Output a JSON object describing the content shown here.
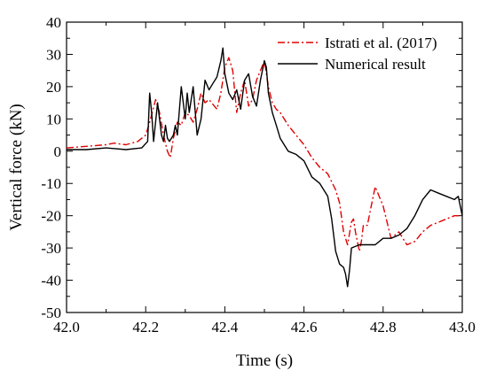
{
  "chart_data": {
    "type": "line",
    "xlabel": "Time (s)",
    "ylabel": "Vertical force (kN)",
    "xlim": [
      42.0,
      43.0
    ],
    "ylim": [
      -50,
      40
    ],
    "xticks": [
      42.0,
      42.2,
      42.4,
      42.6,
      42.8,
      43.0
    ],
    "xtick_labels": [
      "42.0",
      "42.2",
      "42.4",
      "42.6",
      "42.8",
      "43.0"
    ],
    "yticks": [
      -50,
      -40,
      -30,
      -20,
      -10,
      0,
      10,
      20,
      30,
      40
    ],
    "ytick_labels": [
      "-50",
      "-40",
      "-30",
      "-20",
      "-10",
      "0",
      "10",
      "20",
      "30",
      "40"
    ],
    "grid": false,
    "legend_position": "top-right",
    "series": [
      {
        "name": "Istrati et al. (2017)",
        "color": "#e00000",
        "style": "dash-dot",
        "x": [
          42.0,
          42.05,
          42.1,
          42.12,
          42.15,
          42.18,
          42.2,
          42.21,
          42.225,
          42.235,
          42.245,
          42.255,
          42.262,
          42.27,
          42.28,
          42.29,
          42.3,
          42.31,
          42.32,
          42.33,
          42.34,
          42.35,
          42.36,
          42.38,
          42.39,
          42.4,
          42.41,
          42.42,
          42.43,
          42.44,
          42.45,
          42.46,
          42.47,
          42.48,
          42.49,
          42.5,
          42.51,
          42.52,
          42.53,
          42.54,
          42.56,
          42.58,
          42.6,
          42.62,
          42.64,
          42.66,
          42.68,
          42.69,
          42.7,
          42.71,
          42.72,
          42.725,
          42.73,
          42.74,
          42.745,
          42.75,
          42.76,
          42.77,
          42.78,
          42.79,
          42.8,
          42.82,
          42.84,
          42.86,
          42.88,
          42.9,
          42.92,
          42.94,
          42.96,
          42.98,
          43.0
        ],
        "y": [
          1,
          1.5,
          2,
          2.5,
          2,
          3,
          5,
          9,
          16,
          12,
          5,
          0,
          -2,
          4,
          9,
          8,
          12,
          11,
          9,
          13,
          18,
          15,
          16,
          13,
          18,
          26,
          29,
          25,
          12,
          18,
          22,
          14,
          16,
          22,
          25,
          28,
          20,
          15,
          13,
          12,
          8,
          5,
          2,
          -2,
          -5,
          -7,
          -12,
          -16,
          -25,
          -29,
          -22,
          -21,
          -25,
          -31,
          -28,
          -23,
          -23,
          -17,
          -11,
          -14,
          -17,
          -27,
          -25,
          -29,
          -28,
          -25,
          -23,
          -22,
          -21,
          -20,
          -20
        ]
      },
      {
        "name": "Numerical result",
        "color": "#000000",
        "style": "solid",
        "x": [
          42.0,
          42.05,
          42.1,
          42.15,
          42.19,
          42.205,
          42.21,
          42.215,
          42.22,
          42.23,
          42.24,
          42.245,
          42.25,
          42.255,
          42.26,
          42.27,
          42.275,
          42.28,
          42.29,
          42.3,
          42.305,
          42.31,
          42.32,
          42.33,
          42.34,
          42.35,
          42.36,
          42.37,
          42.38,
          42.39,
          42.395,
          42.4,
          42.41,
          42.42,
          42.43,
          42.44,
          42.45,
          42.46,
          42.47,
          42.48,
          42.49,
          42.5,
          42.505,
          42.51,
          42.52,
          42.53,
          42.54,
          42.56,
          42.58,
          42.6,
          42.62,
          42.64,
          42.66,
          42.67,
          42.68,
          42.69,
          42.7,
          42.705,
          42.71,
          42.715,
          42.72,
          42.74,
          42.76,
          42.78,
          42.8,
          42.82,
          42.84,
          42.86,
          42.88,
          42.9,
          42.92,
          42.94,
          42.96,
          42.98,
          42.99,
          43.0
        ],
        "y": [
          0.5,
          0.5,
          1,
          0.5,
          1,
          3,
          18,
          12,
          3,
          15,
          5,
          3,
          8,
          4,
          3,
          5,
          8,
          5,
          20,
          10,
          18,
          12,
          20,
          5,
          10,
          22,
          19,
          21,
          23,
          28,
          32,
          24,
          18,
          16,
          19,
          13,
          22,
          24,
          17,
          14,
          22,
          28,
          26,
          18,
          12,
          8,
          4,
          0,
          -1,
          -3,
          -8,
          -10,
          -14,
          -21,
          -31,
          -35,
          -36,
          -38,
          -42,
          -37,
          -30,
          -29,
          -29,
          -29,
          -27,
          -27,
          -26,
          -24,
          -20,
          -15,
          -12,
          -13,
          -14,
          -15,
          -14,
          -20
        ]
      }
    ]
  }
}
